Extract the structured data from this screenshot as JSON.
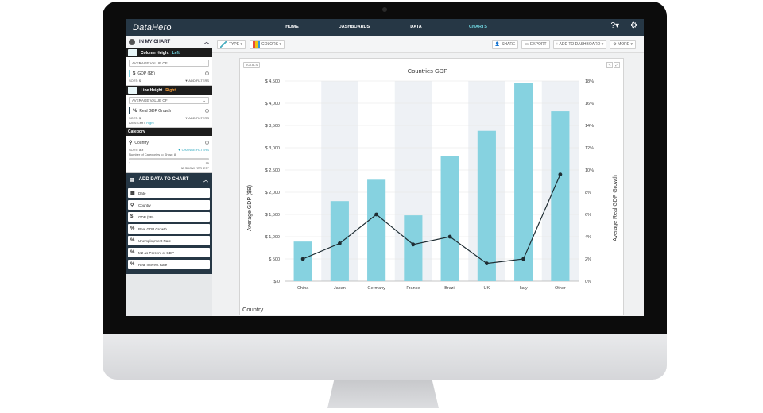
{
  "app": {
    "logo": "DataHero"
  },
  "nav": {
    "items": [
      "HOME",
      "DASHBOARDS",
      "DATA",
      "CHARTS"
    ],
    "active": "CHARTS",
    "help_label": "?▾",
    "gear_glyph": "⚙"
  },
  "sidebar": {
    "in_my_chart": "IN MY CHART",
    "column": {
      "title": "Column Height",
      "side": "Left",
      "agg": "AVERAGE VALUE OF:",
      "field_symbol": "$",
      "field": "GDP ($B)",
      "sort": "SORT: $",
      "filters": "▼ ADD FILTERS"
    },
    "line": {
      "title": "Line Height",
      "side": "Right",
      "agg": "AVERAGE VALUE OF:",
      "field_symbol": "%",
      "field": "Real GDP Growth",
      "sort": "SORT: $",
      "filters": "▼ ADD FILTERS",
      "axis_label": "AXIS: Left /",
      "axis_value": "Right"
    },
    "category": {
      "title": "Category",
      "field": "Country",
      "sort": "SORT: a-z",
      "filters": "▼ CHANGE FILTERS",
      "num_label": "Number of Categories to Show: 8",
      "min": "1",
      "max": "15",
      "show_other": "☑ SHOW \"OTHER\""
    },
    "add_data": {
      "title": "ADD DATA TO CHART",
      "items": [
        {
          "symbol": "▦",
          "label": "Date"
        },
        {
          "symbol": "⚲",
          "label": "Country"
        },
        {
          "symbol": "$",
          "label": "GDP ($B)"
        },
        {
          "symbol": "%",
          "label": "Real GDP Growth"
        },
        {
          "symbol": "%",
          "label": "Unemployment Rate"
        },
        {
          "symbol": "%",
          "label": "M2 as Percent of GDP"
        },
        {
          "symbol": "%",
          "label": "Real Interest Rate"
        }
      ]
    }
  },
  "toolbar": {
    "type": "TYPE ▾",
    "colors": "COLORS ▾",
    "share": "SHARE",
    "export": "EXPORT",
    "add_dashboard": "+ ADD TO DASHBOARD ▾",
    "more": "⚙ MORE ▾"
  },
  "chart_panel": {
    "totals": "TOTALS"
  },
  "colors": {
    "bar": "#86d2e0",
    "line": "#1f2d33",
    "band": "#eef1f5"
  },
  "chart_data": {
    "type": "bar",
    "title": "Countries GDP",
    "xlabel": "Country",
    "ylabel": "Average GDP ($B)",
    "y2label": "Average Real GDP Growth",
    "categories": [
      "China",
      "Japan",
      "Germany",
      "France",
      "Brazil",
      "UK",
      "Italy",
      "Other"
    ],
    "series": [
      {
        "name": "GDP ($B)",
        "type": "bar",
        "axis": "left",
        "values": [
          890,
          1800,
          2280,
          1480,
          2820,
          3380,
          4460,
          3820
        ]
      },
      {
        "name": "Real GDP Growth",
        "type": "line",
        "axis": "right",
        "values": [
          2.0,
          3.4,
          6.0,
          3.3,
          4.0,
          1.6,
          2.0,
          9.6
        ]
      }
    ],
    "ylim": [
      0,
      4500
    ],
    "yticks": [
      "$ 0",
      "$ 500",
      "$ 1,000",
      "$ 1,500",
      "$ 2,000",
      "$ 2,500",
      "$ 3,000",
      "$ 3,500",
      "$ 4,000",
      "$ 4,500"
    ],
    "y2lim": [
      0,
      18
    ],
    "y2ticks": [
      "0%",
      "2%",
      "4%",
      "6%",
      "8%",
      "10%",
      "12%",
      "14%",
      "16%",
      "18%"
    ],
    "grid": true,
    "legend": "none"
  }
}
